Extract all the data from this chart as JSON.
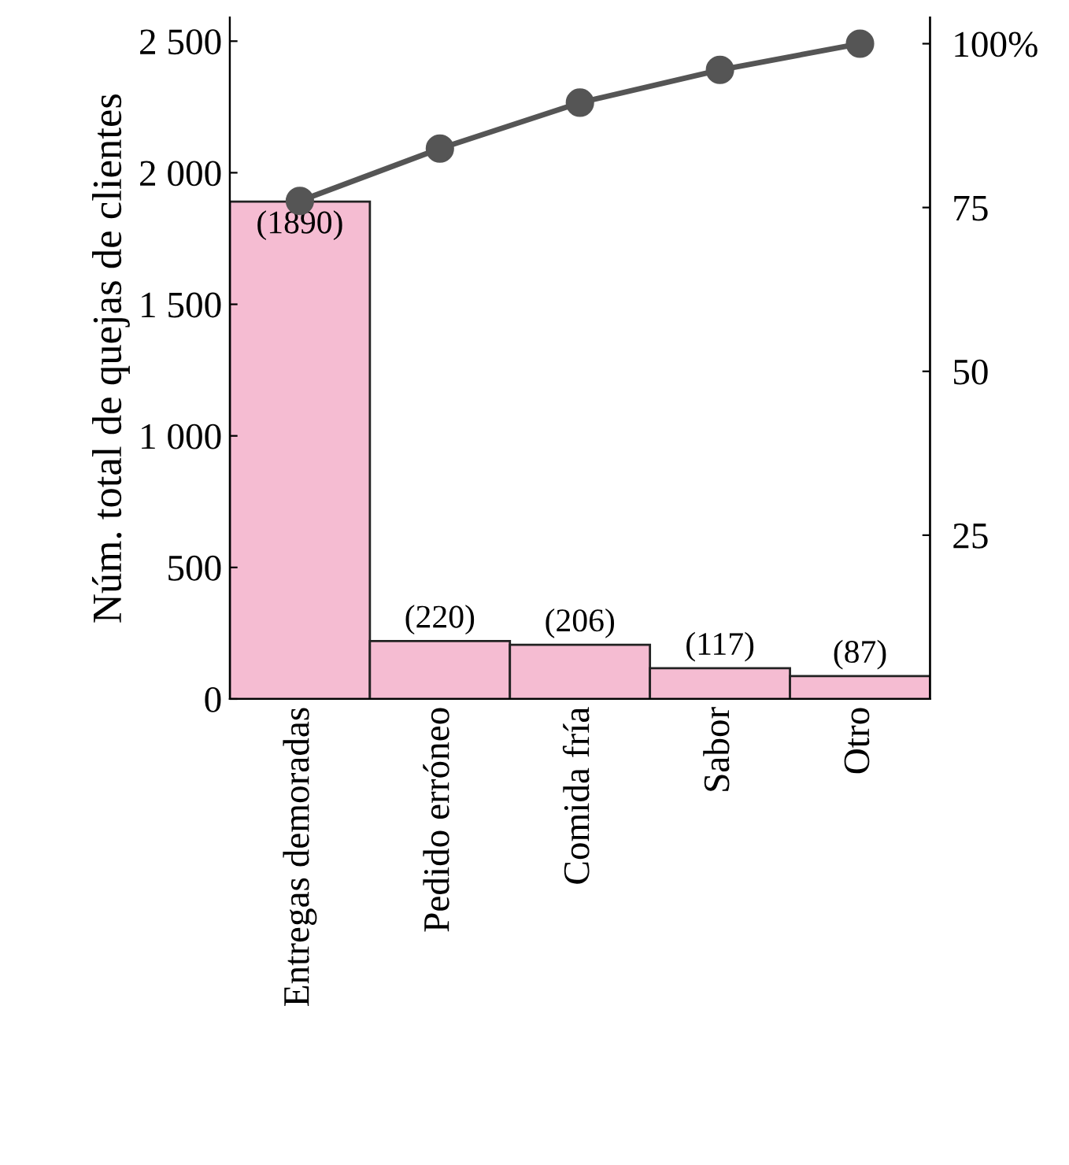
{
  "chart_data": {
    "type": "bar",
    "ylabel": "Núm. total de quejas de clientes",
    "categories": [
      "Entregas demoradas",
      "Pedido erróneo",
      "Comida fría",
      "Sabor",
      "Otro"
    ],
    "series": [
      {
        "color": "#f5bcd2",
        "values": [
          1890,
          220,
          206,
          117,
          87
        ],
        "value_labels": [
          "(1890)",
          "(220)",
          "(206)",
          "(117)",
          "(87)"
        ]
      },
      {
        "type": "line",
        "axis": "y2",
        "color": "#555555",
        "values": [
          76,
          84,
          91,
          96,
          100
        ]
      }
    ],
    "ylim": [
      0,
      2590
    ],
    "yticks": [
      {
        "value": 0,
        "label": "0"
      },
      {
        "value": 500,
        "label": "500"
      },
      {
        "value": 1000,
        "label": "1 000"
      },
      {
        "value": 1500,
        "label": "1 500"
      },
      {
        "value": 2000,
        "label": "2 000"
      },
      {
        "value": 2500,
        "label": "2 500"
      }
    ],
    "y2lim": [
      0,
      104
    ],
    "y2ticks": [
      25,
      50,
      75,
      {
        "value": 100,
        "label": "100%"
      }
    ],
    "marker": "circle",
    "line_style": "solid",
    "grid": false,
    "legend": false
  }
}
